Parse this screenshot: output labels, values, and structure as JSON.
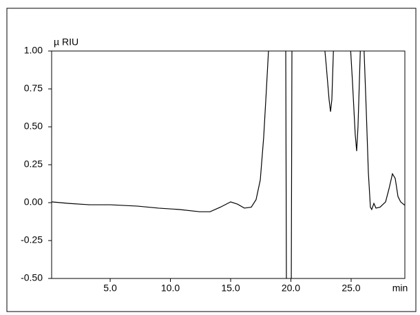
{
  "chart_data": {
    "type": "line",
    "y_label": "µ RIU",
    "x_label": "min",
    "x": [
      0.14,
      1.57,
      3.29,
      5.0,
      7.29,
      9.0,
      10.71,
      12.43,
      13.29,
      14.14,
      15.0,
      15.57,
      16.14,
      16.71,
      17.11,
      17.46,
      17.74,
      17.97,
      18.14,
      18.31,
      19.57,
      19.63,
      20.03,
      20.09,
      22.71,
      22.94,
      23.17,
      23.29,
      23.4,
      23.57,
      24.89,
      25.11,
      25.34,
      25.46,
      25.57,
      25.8,
      26.03,
      26.26,
      26.43,
      26.6,
      26.71,
      26.89,
      27.06,
      27.4,
      27.86,
      28.14,
      28.43,
      28.66,
      28.89,
      29.11,
      29.46
    ],
    "series": [
      {
        "color": "#000000",
        "values": [
          0.005,
          -0.005,
          -0.014,
          -0.014,
          -0.023,
          -0.036,
          -0.045,
          -0.06,
          -0.06,
          -0.03,
          0.005,
          -0.01,
          -0.036,
          -0.03,
          0.02,
          0.15,
          0.43,
          0.75,
          1.0,
          1.1,
          1.1,
          -0.6,
          -0.6,
          1.1,
          1.1,
          0.9,
          0.68,
          0.6,
          0.68,
          1.1,
          1.1,
          0.8,
          0.45,
          0.34,
          0.5,
          1.1,
          1.1,
          0.6,
          0.2,
          -0.03,
          -0.045,
          -0.005,
          -0.036,
          -0.03,
          0.005,
          0.09,
          0.19,
          0.16,
          0.04,
          0.005,
          -0.018
        ]
      }
    ],
    "xlim": [
      0.14,
      29.46
    ],
    "ylim": [
      -0.5,
      1.0
    ],
    "xticks": [
      {
        "value": 5,
        "label": "5.0"
      },
      {
        "value": 10,
        "label": "10.0"
      },
      {
        "value": 15,
        "label": "15.0"
      },
      {
        "value": 20,
        "label": "20.0"
      },
      {
        "value": 25,
        "label": "25.0"
      }
    ],
    "yticks": [
      {
        "value": 1,
        "label": "1.00"
      },
      {
        "value": 0.75,
        "label": "0.75"
      },
      {
        "value": 0.5,
        "label": "0.50"
      },
      {
        "value": 0.25,
        "label": "0.25"
      },
      {
        "value": 0,
        "label": "0.00"
      },
      {
        "value": -0.25,
        "label": "-0.25"
      },
      {
        "value": -0.5,
        "label": "-0.50"
      }
    ],
    "grid": false
  }
}
